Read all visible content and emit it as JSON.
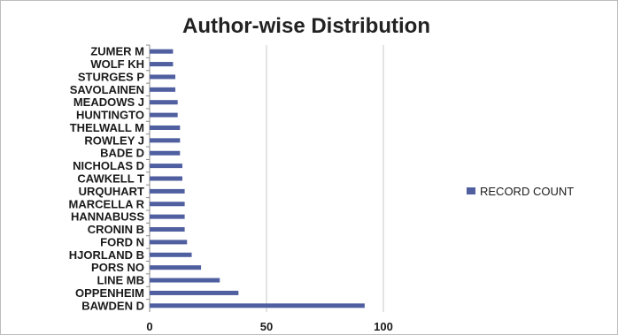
{
  "chart_data": {
    "type": "bar",
    "orientation": "horizontal",
    "title": "Author-wise Distribution",
    "xlabel": "",
    "ylabel": "",
    "categories": [
      "ZUMER M",
      "WOLF KH",
      "STURGES P",
      "SAVOLAINEN",
      "MEADOWS J",
      "HUNTINGTO",
      "THELWALL M",
      "ROWLEY J",
      "BADE D",
      "NICHOLAS D",
      "CAWKELL T",
      "URQUHART",
      "MARCELLA R",
      "HANNABUSS",
      "CRONIN B",
      "FORD N",
      "HJORLAND B",
      "PORS NO",
      "LINE MB",
      "OPPENHEIM",
      "BAWDEN D"
    ],
    "series": [
      {
        "name": "RECORD COUNT",
        "values": [
          10,
          10,
          11,
          11,
          12,
          12,
          13,
          13,
          13,
          14,
          14,
          15,
          15,
          15,
          15,
          16,
          18,
          22,
          30,
          38,
          92
        ]
      }
    ],
    "xlim": [
      0,
      100
    ],
    "xticks": [
      0,
      50,
      100
    ],
    "grid": "vertical",
    "legend_position": "right",
    "colors": {
      "bar": "#4f5fa0",
      "grid": "#c8c8c8",
      "axis": "#8a8a8a"
    }
  }
}
